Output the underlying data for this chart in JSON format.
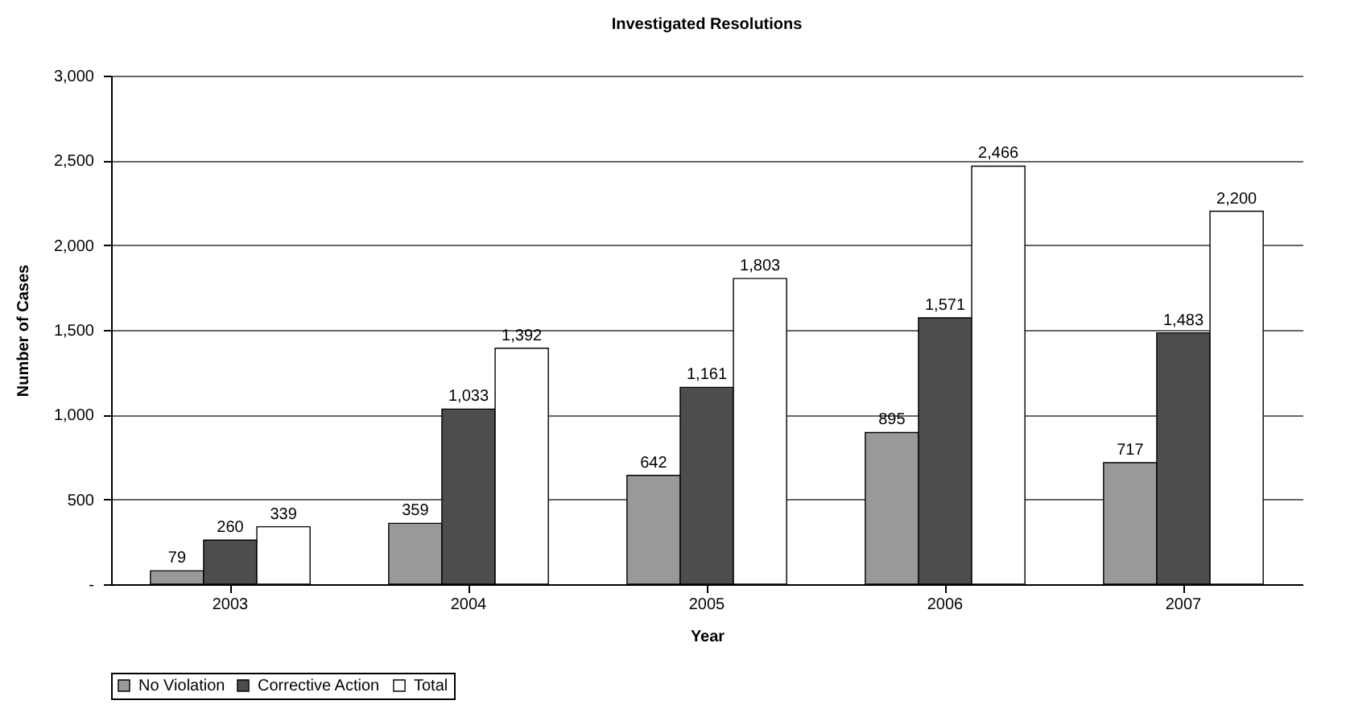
{
  "chart_data": {
    "type": "bar",
    "title": "Investigated Resolutions",
    "xlabel": "Year",
    "ylabel": "Number of Cases",
    "categories": [
      "2003",
      "2004",
      "2005",
      "2006",
      "2007"
    ],
    "series": [
      {
        "name": "No Violation",
        "color": "#999999",
        "values": [
          79,
          359,
          642,
          895,
          717
        ],
        "value_labels": [
          "79",
          "359",
          "642",
          "895",
          "717"
        ]
      },
      {
        "name": "Corrective Action",
        "color": "#4d4d4d",
        "values": [
          260,
          1033,
          1161,
          1571,
          1483
        ],
        "value_labels": [
          "260",
          "1,033",
          "1,161",
          "1,571",
          "1,483"
        ]
      },
      {
        "name": "Total",
        "color": "#ffffff",
        "values": [
          339,
          1392,
          1803,
          2466,
          2200
        ],
        "value_labels": [
          "339",
          "1,392",
          "1,803",
          "2,466",
          "2,200"
        ]
      }
    ],
    "ylim": [
      0,
      3000
    ],
    "yticks": [
      {
        "value": 0,
        "label": "-"
      },
      500,
      {
        "value": 1000,
        "label": "1,000"
      },
      {
        "value": 1500,
        "label": "1,500"
      },
      {
        "value": 2000,
        "label": "2,000"
      },
      {
        "value": 2500,
        "label": "2,500"
      },
      {
        "value": 3000,
        "label": "3,000"
      }
    ],
    "grid": "y",
    "legend": "bottom"
  }
}
